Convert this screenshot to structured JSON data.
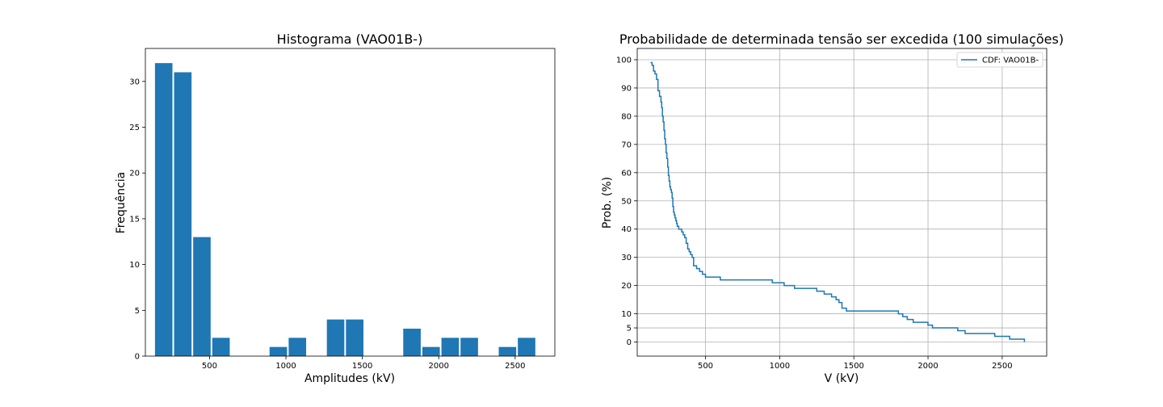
{
  "chart_data": [
    {
      "type": "bar",
      "title": "Histograma (VAO01B-)",
      "xlabel": "Amplitudes (kV)",
      "ylabel": "Frequência",
      "xlim": [
        80,
        2760
      ],
      "ylim": [
        0,
        33.6
      ],
      "xticks": [
        500,
        1000,
        1500,
        2000,
        2500
      ],
      "xtick_labels": [
        "500",
        "1000",
        "1500",
        "2000",
        "2500"
      ],
      "yticks": [
        0,
        5,
        10,
        15,
        20,
        25,
        30
      ],
      "ytick_labels": [
        "0",
        "5",
        "10",
        "15",
        "20",
        "25",
        "30"
      ],
      "bin_centers": [
        200,
        325,
        450,
        575,
        700,
        825,
        950,
        1075,
        1200,
        1325,
        1450,
        1575,
        1700,
        1825,
        1950,
        2075,
        2200,
        2325,
        2450,
        2575
      ],
      "bin_width": 125,
      "values": [
        32,
        31,
        13,
        2,
        0,
        0,
        1,
        2,
        0,
        4,
        4,
        0,
        0,
        3,
        1,
        2,
        2,
        0,
        1,
        2
      ],
      "color": "#1f77b4",
      "grid": false
    },
    {
      "type": "line",
      "title": "Probabilidade de determinada tensão ser excedida (100 simulações)",
      "xlabel": "V (kV)",
      "ylabel": "Prob. (%)",
      "xlim": [
        40,
        2800
      ],
      "ylim": [
        -5,
        104
      ],
      "xticks": [
        500,
        1000,
        1500,
        2000,
        2500
      ],
      "xtick_labels": [
        "500",
        "1000",
        "1500",
        "2000",
        "2500"
      ],
      "yticks": [
        0,
        5,
        10,
        20,
        30,
        40,
        50,
        60,
        70,
        80,
        90,
        100
      ],
      "ytick_labels": [
        "0",
        "5",
        "10",
        "20",
        "30",
        "40",
        "50",
        "60",
        "70",
        "80",
        "90",
        "100"
      ],
      "grid": true,
      "legend_position": "top-right",
      "series": [
        {
          "name": "CDF: VAO01B-",
          "color": "#1f77b4",
          "step": true,
          "x": [
            130,
            140,
            150,
            160,
            170,
            180,
            190,
            200,
            205,
            210,
            215,
            220,
            225,
            230,
            235,
            240,
            245,
            250,
            255,
            260,
            265,
            270,
            275,
            280,
            285,
            290,
            295,
            300,
            305,
            310,
            320,
            330,
            340,
            350,
            360,
            370,
            380,
            390,
            400,
            410,
            420,
            440,
            460,
            480,
            500,
            600,
            950,
            1030,
            1100,
            1250,
            1300,
            1350,
            1380,
            1400,
            1420,
            1450,
            1800,
            1830,
            1860,
            1900,
            2000,
            2030,
            2050,
            2100,
            2200,
            2250,
            2450,
            2550,
            2650
          ],
          "y": [
            99,
            98,
            96,
            95,
            93,
            89,
            87,
            85,
            83,
            80,
            78,
            75,
            72,
            70,
            67,
            65,
            62,
            59,
            57,
            55,
            54,
            53,
            51,
            48,
            46,
            45,
            44,
            43,
            42,
            41,
            40,
            40,
            39,
            38,
            37,
            35,
            33,
            32,
            31,
            30,
            27,
            26,
            25,
            24,
            23,
            22,
            21,
            20,
            19,
            18,
            17,
            16,
            15,
            14,
            12,
            11,
            10,
            9,
            8,
            7,
            6,
            5,
            5,
            5,
            4,
            3,
            2,
            1,
            0
          ]
        }
      ]
    }
  ]
}
